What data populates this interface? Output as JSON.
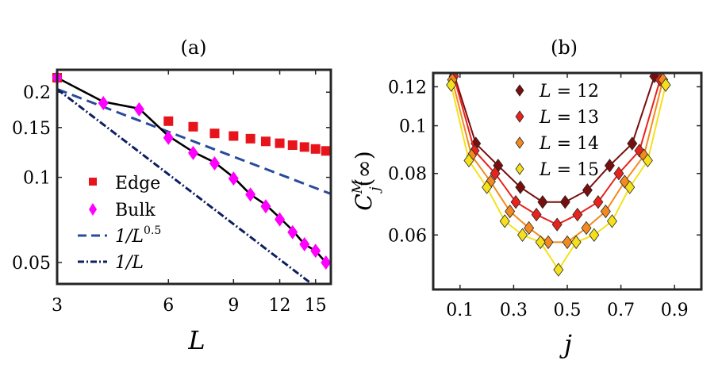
{
  "chart_data": [
    {
      "id": "a",
      "type": "line",
      "scale": "log-log",
      "panel_label": "(a)",
      "xlabel": "L",
      "ylabel": "",
      "xlim": [
        3,
        16.5
      ],
      "ylim": [
        0.042,
        0.24
      ],
      "xticks": [
        3,
        6,
        9,
        12,
        15
      ],
      "xtick_labels": [
        "3",
        "6",
        "9",
        "12",
        "15"
      ],
      "yticks": [
        0.05,
        0.1,
        0.15,
        0.2
      ],
      "ytick_labels": [
        "0.05",
        "0.1",
        "0.15",
        "0.2"
      ],
      "legend_position": "bottom-left",
      "series": [
        {
          "name": "Edge",
          "kind": "markers",
          "marker": "square",
          "color": "#e8141b",
          "x": [
            3,
            6,
            7,
            8,
            9,
            10,
            11,
            12,
            13,
            14,
            15,
            16
          ],
          "y": [
            0.225,
            0.158,
            0.151,
            0.143,
            0.14,
            0.137,
            0.134,
            0.132,
            0.13,
            0.128,
            0.126,
            0.124
          ]
        },
        {
          "name": "Bulk",
          "kind": "markers",
          "marker": "diamond",
          "color": "#ff00ff",
          "x": [
            3,
            4,
            5,
            6,
            7,
            8,
            9,
            10,
            11,
            12,
            13,
            14,
            15,
            16
          ],
          "y": [
            0.225,
            0.183,
            0.174,
            0.138,
            0.122,
            0.112,
            0.099,
            0.087,
            0.079,
            0.071,
            0.064,
            0.058,
            0.055,
            0.05
          ]
        },
        {
          "name": "fit",
          "kind": "line",
          "color": "#000000",
          "legend": false,
          "x": [
            3,
            4,
            5,
            6,
            7,
            8,
            9,
            10,
            11,
            12,
            13,
            14,
            15,
            16
          ],
          "y": [
            0.225,
            0.185,
            0.175,
            0.14,
            0.123,
            0.113,
            0.1,
            0.087,
            0.08,
            0.072,
            0.065,
            0.058,
            0.055,
            0.05
          ]
        },
        {
          "name": "1/L^0.5",
          "label_base": "1/L",
          "label_sup": "0.5",
          "kind": "line",
          "dash": "dash",
          "color": "#2a4b9b",
          "x": [
            3,
            16.5
          ],
          "y": [
            0.205,
            0.0874
          ]
        },
        {
          "name": "1/L",
          "label_base": "1/L",
          "label_sup": "",
          "kind": "line",
          "dash": "dashdot",
          "color": "#0d1f5f",
          "x": [
            3,
            16.5
          ],
          "y": [
            0.205,
            0.0373
          ]
        }
      ]
    },
    {
      "id": "b",
      "type": "line",
      "scale": "semilog-y",
      "panel_label": "(b)",
      "xlabel": "j",
      "ylabel_base": "C",
      "ylabel_sup": "M",
      "ylabel_sub": "j",
      "ylabel_arg": "(∞)",
      "xlim": [
        0,
        1
      ],
      "ylim": [
        0.0465,
        0.128
      ],
      "xticks": [
        0.1,
        0.3,
        0.5,
        0.7,
        0.9
      ],
      "xtick_labels": [
        "0.1",
        "0.3",
        "0.5",
        "0.7",
        "0.9"
      ],
      "yticks": [
        0.06,
        0.08,
        0.1,
        0.12
      ],
      "ytick_labels": [
        "0.06",
        "0.08",
        "0.1",
        "0.12"
      ],
      "legend_position": "top-center",
      "series": [
        {
          "name": "L = 12",
          "label_var": "L",
          "label_val": "12",
          "color": "#7a0d0d",
          "x": [
            0.076,
            0.159,
            0.242,
            0.325,
            0.408,
            0.492,
            0.575,
            0.658,
            0.742,
            0.825
          ],
          "y": [
            0.128,
            0.092,
            0.083,
            0.075,
            0.07,
            0.07,
            0.074,
            0.083,
            0.092,
            0.126
          ]
        },
        {
          "name": "L = 13",
          "label_var": "L",
          "label_val": "13",
          "color": "#e8231d",
          "x": [
            0.077,
            0.154,
            0.231,
            0.308,
            0.385,
            0.462,
            0.538,
            0.615,
            0.692,
            0.769,
            0.846
          ],
          "y": [
            0.126,
            0.089,
            0.08,
            0.07,
            0.066,
            0.063,
            0.066,
            0.07,
            0.08,
            0.089,
            0.124
          ]
        },
        {
          "name": "L = 14",
          "label_var": "L",
          "label_val": "14",
          "color": "#f38a1f",
          "x": [
            0.071,
            0.143,
            0.214,
            0.286,
            0.357,
            0.429,
            0.5,
            0.571,
            0.643,
            0.714,
            0.786,
            0.857
          ],
          "y": [
            0.124,
            0.087,
            0.077,
            0.067,
            0.062,
            0.058,
            0.058,
            0.062,
            0.067,
            0.077,
            0.087,
            0.124
          ]
        },
        {
          "name": "L = 15",
          "label_var": "L",
          "label_val": "15",
          "color": "#f5e11b",
          "x": [
            0.067,
            0.133,
            0.2,
            0.267,
            0.333,
            0.4,
            0.467,
            0.533,
            0.6,
            0.667,
            0.733,
            0.8,
            0.867
          ],
          "y": [
            0.121,
            0.085,
            0.075,
            0.064,
            0.06,
            0.058,
            0.051,
            0.058,
            0.06,
            0.064,
            0.075,
            0.085,
            0.121
          ]
        }
      ]
    }
  ]
}
